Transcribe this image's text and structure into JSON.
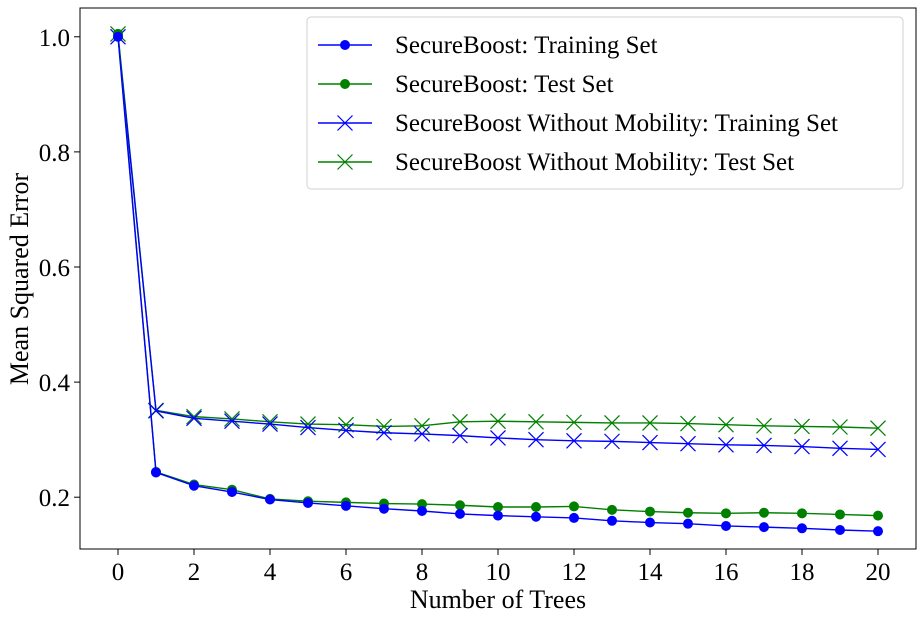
{
  "chart_data": {
    "type": "line",
    "title": "",
    "xlabel": "Number of Trees",
    "ylabel": "Mean Squared Error",
    "xlim": [
      -1,
      21
    ],
    "ylim": [
      0.11,
      1.05
    ],
    "xticks": [
      0,
      2,
      4,
      6,
      8,
      10,
      12,
      14,
      16,
      18,
      20
    ],
    "yticks": [
      0.2,
      0.4,
      0.6,
      0.8,
      1.0
    ],
    "ytick_labels": [
      "0.2",
      "0.4",
      "0.6",
      "0.8",
      "1.0"
    ],
    "legend_position": "top-right",
    "x": [
      0,
      1,
      2,
      3,
      4,
      5,
      6,
      7,
      8,
      9,
      10,
      11,
      12,
      13,
      14,
      15,
      16,
      17,
      18,
      19,
      20
    ],
    "series": [
      {
        "name": "SecureBoost: Training Set",
        "color": "#0000ff",
        "marker": "dot",
        "values": [
          1.0,
          0.243,
          0.22,
          0.209,
          0.196,
          0.19,
          0.185,
          0.18,
          0.176,
          0.171,
          0.168,
          0.166,
          0.164,
          0.159,
          0.156,
          0.154,
          0.15,
          0.148,
          0.146,
          0.143,
          0.141
        ]
      },
      {
        "name": "SecureBoost: Test Set",
        "color": "#008000",
        "marker": "dot",
        "values": [
          1.005,
          0.244,
          0.222,
          0.213,
          0.197,
          0.193,
          0.191,
          0.189,
          0.188,
          0.186,
          0.183,
          0.183,
          0.184,
          0.178,
          0.175,
          0.173,
          0.172,
          0.173,
          0.172,
          0.17,
          0.168
        ]
      },
      {
        "name": "SecureBoost Without Mobility: Training Set",
        "color": "#0000ff",
        "marker": "x",
        "values": [
          1.0,
          0.35,
          0.337,
          0.332,
          0.327,
          0.321,
          0.316,
          0.312,
          0.31,
          0.307,
          0.303,
          0.3,
          0.298,
          0.297,
          0.295,
          0.293,
          0.291,
          0.29,
          0.288,
          0.285,
          0.283
        ]
      },
      {
        "name": "SecureBoost Without Mobility: Test Set",
        "color": "#008000",
        "marker": "x",
        "values": [
          1.005,
          0.351,
          0.34,
          0.336,
          0.331,
          0.327,
          0.326,
          0.323,
          0.324,
          0.331,
          0.332,
          0.331,
          0.33,
          0.329,
          0.329,
          0.328,
          0.326,
          0.324,
          0.323,
          0.322,
          0.32
        ]
      }
    ]
  }
}
